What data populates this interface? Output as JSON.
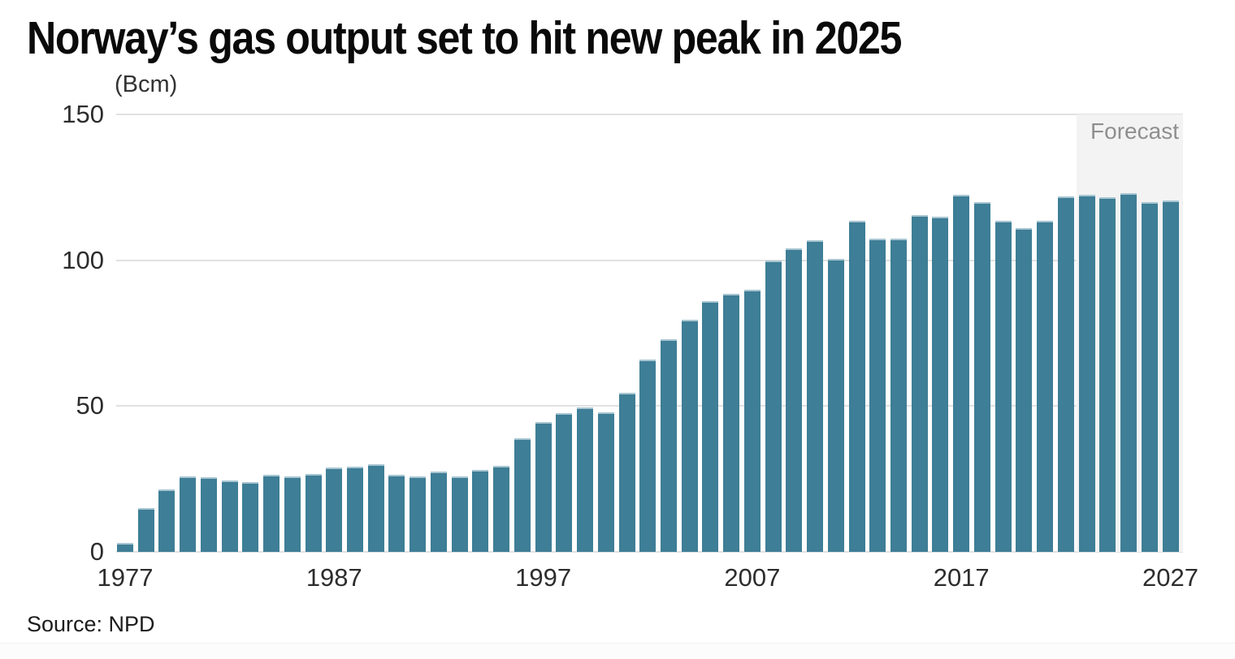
{
  "header": {
    "title": "Norway’s gas output set to hit new peak in 2025"
  },
  "source": {
    "text": "Source: NPD"
  },
  "chart_data": {
    "type": "bar",
    "title": "Norway’s gas output set to hit new peak in 2025",
    "unit_label": "(Bcm)",
    "ylabel": "Bcm",
    "ylim": [
      0,
      150
    ],
    "y_ticks": [
      0,
      50,
      100,
      150
    ],
    "x_ticks": [
      1977,
      1987,
      1997,
      2007,
      2017,
      2027
    ],
    "grid": true,
    "legend": "none",
    "forecast_label": "Forecast",
    "forecast_start_year": 2023,
    "bar_color": "#3E7E96",
    "bar_top_edge_color": "#a9c6d2",
    "forecast_bg_color": "#f3f3f4",
    "grid_color": "#e1e1e1",
    "x": [
      1977,
      1978,
      1979,
      1980,
      1981,
      1982,
      1983,
      1984,
      1985,
      1986,
      1987,
      1988,
      1989,
      1990,
      1991,
      1992,
      1993,
      1994,
      1995,
      1996,
      1997,
      1998,
      1999,
      2000,
      2001,
      2002,
      2003,
      2004,
      2005,
      2006,
      2007,
      2008,
      2009,
      2010,
      2011,
      2012,
      2013,
      2014,
      2015,
      2016,
      2017,
      2018,
      2019,
      2020,
      2021,
      2022,
      2023,
      2024,
      2025,
      2026,
      2027
    ],
    "values": [
      3,
      15,
      21.3,
      26,
      25.5,
      24.5,
      24,
      26.3,
      26,
      26.7,
      29,
      29.3,
      30,
      26.5,
      26,
      27.5,
      26,
      28,
      29.5,
      39,
      44.5,
      47.5,
      49.5,
      48,
      54.5,
      66,
      73,
      79.5,
      86,
      88.5,
      90,
      100,
      104,
      107,
      100.5,
      113.5,
      107.5,
      107.5,
      115.5,
      115,
      122.5,
      120,
      113.5,
      111,
      113.5,
      122,
      122.5,
      121.5,
      123,
      120,
      120.5
    ]
  }
}
